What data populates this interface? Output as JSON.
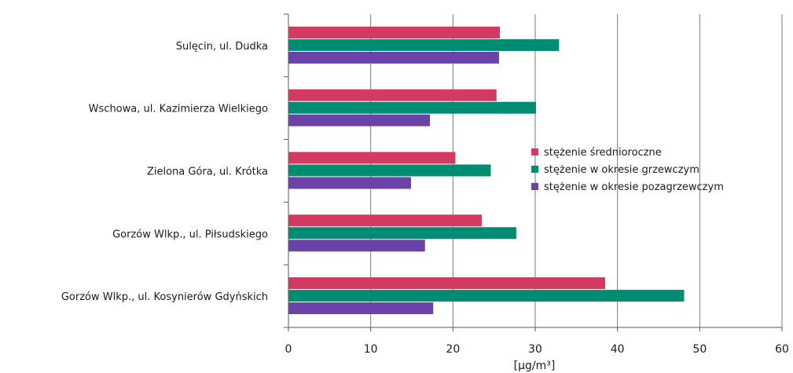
{
  "chart_data": {
    "type": "bar",
    "orientation": "horizontal",
    "categories": [
      "Sulęcin, ul. Dudka",
      "Wschowa, ul. Kazimierza Wielkiego",
      "Zielona Góra, ul. Krótka",
      "Gorzów Wlkp., ul. Piłsudskiego",
      "Gorzów Wlkp., ul. Kosynierów Gdyńskich"
    ],
    "series": [
      {
        "name": "stężenie średnioroczne",
        "color": "#d33a62",
        "values": [
          25.7,
          25.3,
          20.3,
          23.5,
          38.5
        ]
      },
      {
        "name": "stężenie w okresie grzewczym",
        "color": "#008c73",
        "values": [
          32.9,
          30.1,
          24.6,
          27.7,
          48.1
        ]
      },
      {
        "name": "stężenie w okresie pozagrzewczym",
        "color": "#6a42a8",
        "values": [
          25.6,
          17.2,
          14.9,
          16.6,
          17.6
        ]
      }
    ],
    "xlim": [
      0,
      60
    ],
    "xticks": [
      "0",
      "10",
      "20",
      "30",
      "40",
      "50",
      "60"
    ],
    "xlabel": "[µg/m³]",
    "grid": "vertical",
    "legend_position": "right"
  }
}
